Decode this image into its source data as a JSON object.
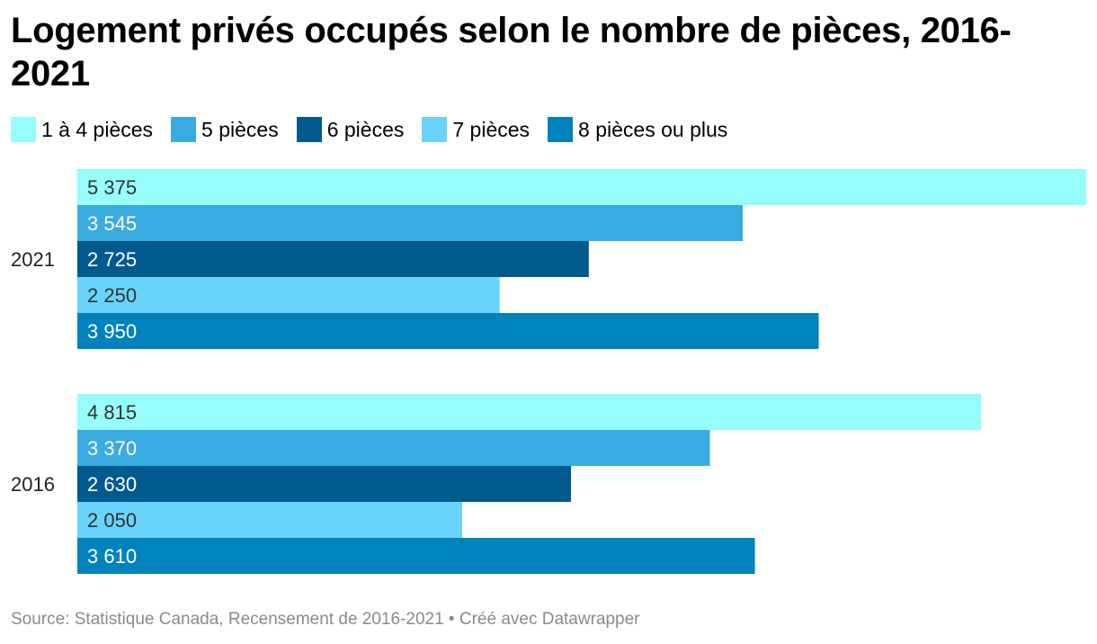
{
  "title": "Logement privés occupés selon le nombre de pièces, 2016-2021",
  "source": "Source: Statistique Canada, Recensement de 2016-2021 • Créé avec Datawrapper",
  "chart_data": {
    "type": "bar",
    "orientation": "horizontal",
    "grouped": true,
    "title": "Logement privés occupés selon le nombre de pièces, 2016-2021",
    "categories": [
      "2021",
      "2016"
    ],
    "series": [
      {
        "name": "1 à 4 pièces",
        "color": "#96fcfc",
        "values": [
          5375,
          4815
        ],
        "labels": [
          "5 375",
          "4 815"
        ],
        "label_color": "#333333"
      },
      {
        "name": "5 pièces",
        "color": "#3aabe2",
        "values": [
          3545,
          3370
        ],
        "labels": [
          "3 545",
          "3 370"
        ],
        "label_color": "#ffffff"
      },
      {
        "name": "6 pièces",
        "color": "#005a8e",
        "values": [
          2725,
          2630
        ],
        "labels": [
          "2 725",
          "2 630"
        ],
        "label_color": "#ffffff"
      },
      {
        "name": "7 pièces",
        "color": "#69d3fb",
        "values": [
          2250,
          2050
        ],
        "labels": [
          "2 250",
          "2 050"
        ],
        "label_color": "#333333"
      },
      {
        "name": "8 pièces ou plus",
        "color": "#0083bc",
        "values": [
          3950,
          3610
        ],
        "labels": [
          "3 950",
          "3 610"
        ],
        "label_color": "#ffffff"
      }
    ],
    "xlim": [
      0,
      5375
    ],
    "grid": false,
    "legend_position": "top-left"
  }
}
